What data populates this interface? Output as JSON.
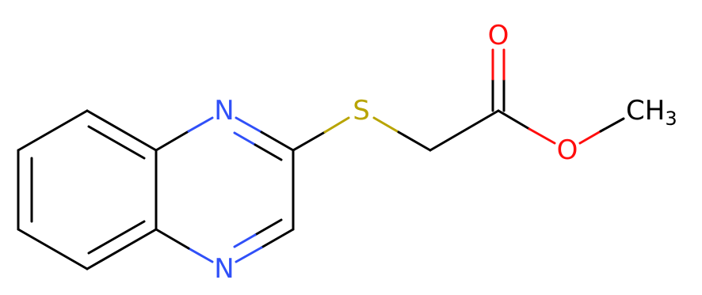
{
  "atoms": [
    {
      "label": "N"
    },
    {
      "label": "N"
    },
    {
      "label": "S"
    },
    {
      "label": "O"
    },
    {
      "label": "O"
    },
    {
      "label": "CH",
      "subscript": "3"
    }
  ]
}
